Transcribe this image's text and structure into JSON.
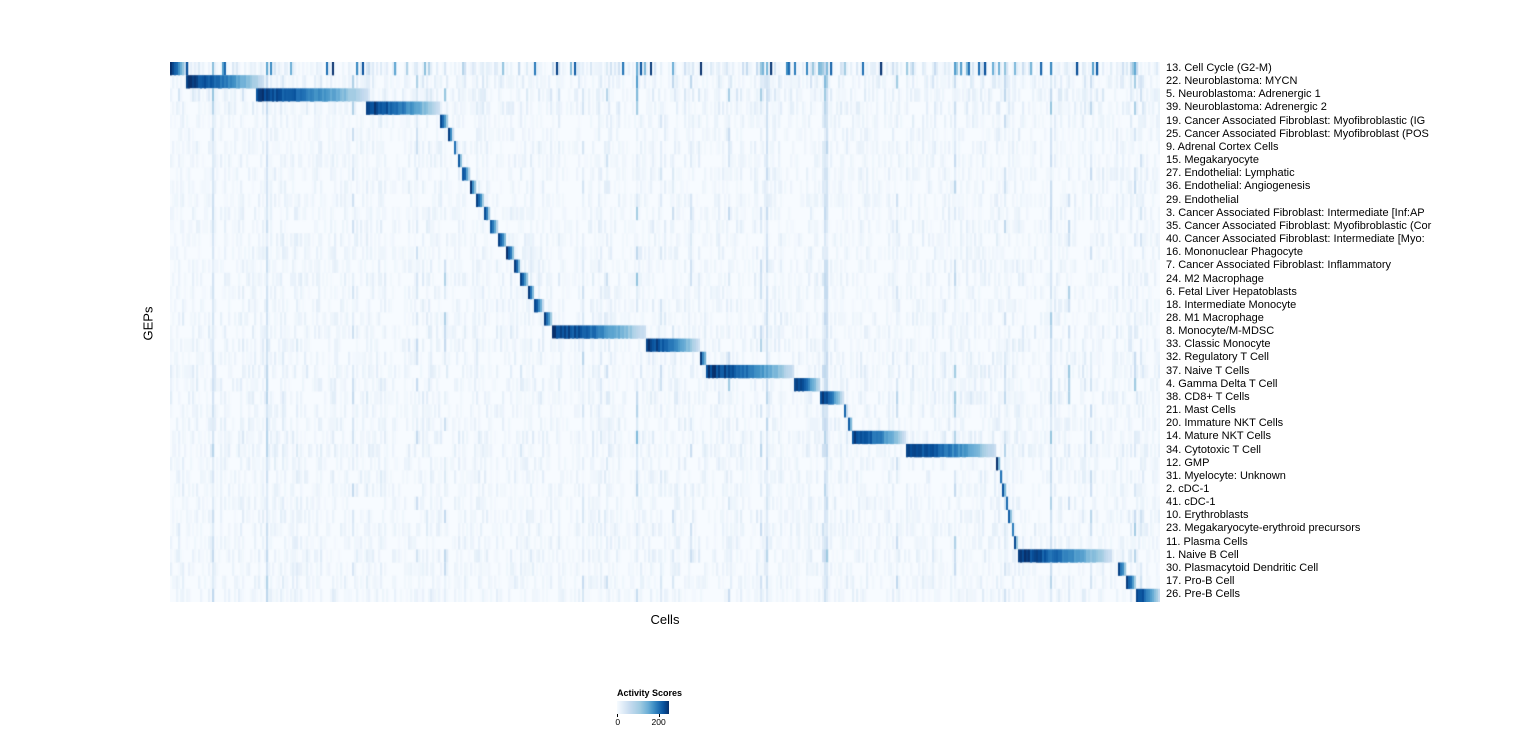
{
  "chart_data": {
    "type": "heatmap",
    "title": "",
    "xlabel": "Cells",
    "ylabel": "GEPs",
    "colormap": "Blues",
    "colorbar": {
      "title": "Activity Scores",
      "ticks": [
        "0",
        "200"
      ],
      "min_value": 0,
      "max_value": 200,
      "min_color": "#f7fbff",
      "max_color": "#08306b"
    },
    "description": "Block-diagonal heatmap of GEP activity scores across cells; each row shows a contiguous block of cells with high activity (~200) for that GEP over a near-white low-activity background with sparse speckle noise.",
    "rows": [
      {
        "label": "13. Cell Cycle (G2-M)",
        "block_start": 0.0,
        "block_end": 0.016,
        "peak": 200,
        "noise": 2.2,
        "scattered": true
      },
      {
        "label": "22. Neuroblastoma: MYCN",
        "block_start": 0.016,
        "block_end": 0.095,
        "peak": 200,
        "noise": 1.6
      },
      {
        "label": "5. Neuroblastoma: Adrenergic 1",
        "block_start": 0.086,
        "block_end": 0.2,
        "peak": 200,
        "noise": 1.6
      },
      {
        "label": "39. Neuroblastoma: Adrenergic 2",
        "block_start": 0.197,
        "block_end": 0.272,
        "peak": 200,
        "noise": 1.4
      },
      {
        "label": "19. Cancer Associated Fibroblast: Myofibroblastic (IG",
        "block_start": 0.272,
        "block_end": 0.281,
        "peak": 200,
        "noise": 1.0
      },
      {
        "label": "25. Cancer Associated Fibroblast: Myofibroblast (POS",
        "block_start": 0.281,
        "block_end": 0.286,
        "peak": 200,
        "noise": 1.0
      },
      {
        "label": "9. Adrenal Cortex Cells",
        "block_start": 0.286,
        "block_end": 0.29,
        "peak": 200,
        "noise": 1.0
      },
      {
        "label": "15. Megakaryocyte",
        "block_start": 0.29,
        "block_end": 0.295,
        "peak": 200,
        "noise": 1.0
      },
      {
        "label": "27. Endothelial: Lymphatic",
        "block_start": 0.295,
        "block_end": 0.303,
        "peak": 200,
        "noise": 1.0
      },
      {
        "label": "36. Endothelial: Angiogenesis",
        "block_start": 0.303,
        "block_end": 0.309,
        "peak": 200,
        "noise": 1.0
      },
      {
        "label": "29. Endothelial",
        "block_start": 0.309,
        "block_end": 0.317,
        "peak": 200,
        "noise": 1.0
      },
      {
        "label": "3. Cancer Associated Fibroblast: Intermediate [Inf:AP",
        "block_start": 0.317,
        "block_end": 0.323,
        "peak": 200,
        "noise": 1.0
      },
      {
        "label": "35. Cancer Associated Fibroblast: Myofibroblastic (Cor",
        "block_start": 0.323,
        "block_end": 0.331,
        "peak": 200,
        "noise": 1.0
      },
      {
        "label": "40. Cancer Associated Fibroblast: Intermediate [Myo:",
        "block_start": 0.331,
        "block_end": 0.34,
        "peak": 200,
        "noise": 1.0
      },
      {
        "label": "16. Mononuclear Phagocyte",
        "block_start": 0.34,
        "block_end": 0.348,
        "peak": 200,
        "noise": 1.0
      },
      {
        "label": "7. Cancer Associated Fibroblast: Inflammatory",
        "block_start": 0.348,
        "block_end": 0.354,
        "peak": 200,
        "noise": 1.0
      },
      {
        "label": "24. M2 Macrophage",
        "block_start": 0.354,
        "block_end": 0.362,
        "peak": 200,
        "noise": 1.1
      },
      {
        "label": "6. Fetal Liver Hepatoblasts",
        "block_start": 0.362,
        "block_end": 0.368,
        "peak": 200,
        "noise": 1.0
      },
      {
        "label": "18. Intermediate Monocyte",
        "block_start": 0.368,
        "block_end": 0.377,
        "peak": 200,
        "noise": 1.1
      },
      {
        "label": "28. M1 Macrophage",
        "block_start": 0.377,
        "block_end": 0.386,
        "peak": 200,
        "noise": 1.1
      },
      {
        "label": "8. Monocyte/M-MDSC",
        "block_start": 0.386,
        "block_end": 0.48,
        "peak": 200,
        "noise": 1.2
      },
      {
        "label": "33. Classic Monocyte",
        "block_start": 0.48,
        "block_end": 0.535,
        "peak": 200,
        "noise": 1.2
      },
      {
        "label": "32. Regulatory T Cell",
        "block_start": 0.535,
        "block_end": 0.542,
        "peak": 200,
        "noise": 1.2
      },
      {
        "label": "37. Naive T Cells",
        "block_start": 0.542,
        "block_end": 0.631,
        "peak": 200,
        "noise": 1.3
      },
      {
        "label": "4. Gamma Delta T Cell",
        "block_start": 0.631,
        "block_end": 0.657,
        "peak": 200,
        "noise": 1.2
      },
      {
        "label": "38. CD8+ T Cells",
        "block_start": 0.657,
        "block_end": 0.68,
        "peak": 200,
        "noise": 1.3
      },
      {
        "label": "21. Mast Cells",
        "block_start": 0.68,
        "block_end": 0.684,
        "peak": 200,
        "noise": 1.0
      },
      {
        "label": "20. Immature NKT Cells",
        "block_start": 0.684,
        "block_end": 0.689,
        "peak": 200,
        "noise": 1.1
      },
      {
        "label": "14. Mature NKT Cells",
        "block_start": 0.689,
        "block_end": 0.743,
        "peak": 200,
        "noise": 1.3
      },
      {
        "label": "34. Cytotoxic T Cell",
        "block_start": 0.743,
        "block_end": 0.835,
        "peak": 200,
        "noise": 1.3
      },
      {
        "label": "12. GMP",
        "block_start": 0.835,
        "block_end": 0.838,
        "peak": 200,
        "noise": 1.0
      },
      {
        "label": "31. Myelocyte: Unknown",
        "block_start": 0.838,
        "block_end": 0.841,
        "peak": 200,
        "noise": 1.1
      },
      {
        "label": "2. cDC-1",
        "block_start": 0.841,
        "block_end": 0.844,
        "peak": 200,
        "noise": 1.0
      },
      {
        "label": "41. cDC-1",
        "block_start": 0.844,
        "block_end": 0.847,
        "peak": 200,
        "noise": 1.0
      },
      {
        "label": "10. Erythroblasts",
        "block_start": 0.847,
        "block_end": 0.85,
        "peak": 200,
        "noise": 1.1
      },
      {
        "label": "23. Megakaryocyte-erythroid precursors",
        "block_start": 0.85,
        "block_end": 0.853,
        "peak": 200,
        "noise": 1.1
      },
      {
        "label": "11. Plasma Cells",
        "block_start": 0.853,
        "block_end": 0.856,
        "peak": 200,
        "noise": 1.0
      },
      {
        "label": "1. Naive B Cell",
        "block_start": 0.856,
        "block_end": 0.951,
        "peak": 200,
        "noise": 1.2
      },
      {
        "label": "30. Plasmacytoid Dendritic Cell",
        "block_start": 0.957,
        "block_end": 0.966,
        "peak": 200,
        "noise": 1.0
      },
      {
        "label": "17. Pro-B Cell",
        "block_start": 0.966,
        "block_end": 0.976,
        "peak": 200,
        "noise": 1.1
      },
      {
        "label": "26. Pre-B Cells",
        "block_start": 0.976,
        "block_end": 1.0,
        "peak": 200,
        "noise": 1.1
      }
    ]
  }
}
